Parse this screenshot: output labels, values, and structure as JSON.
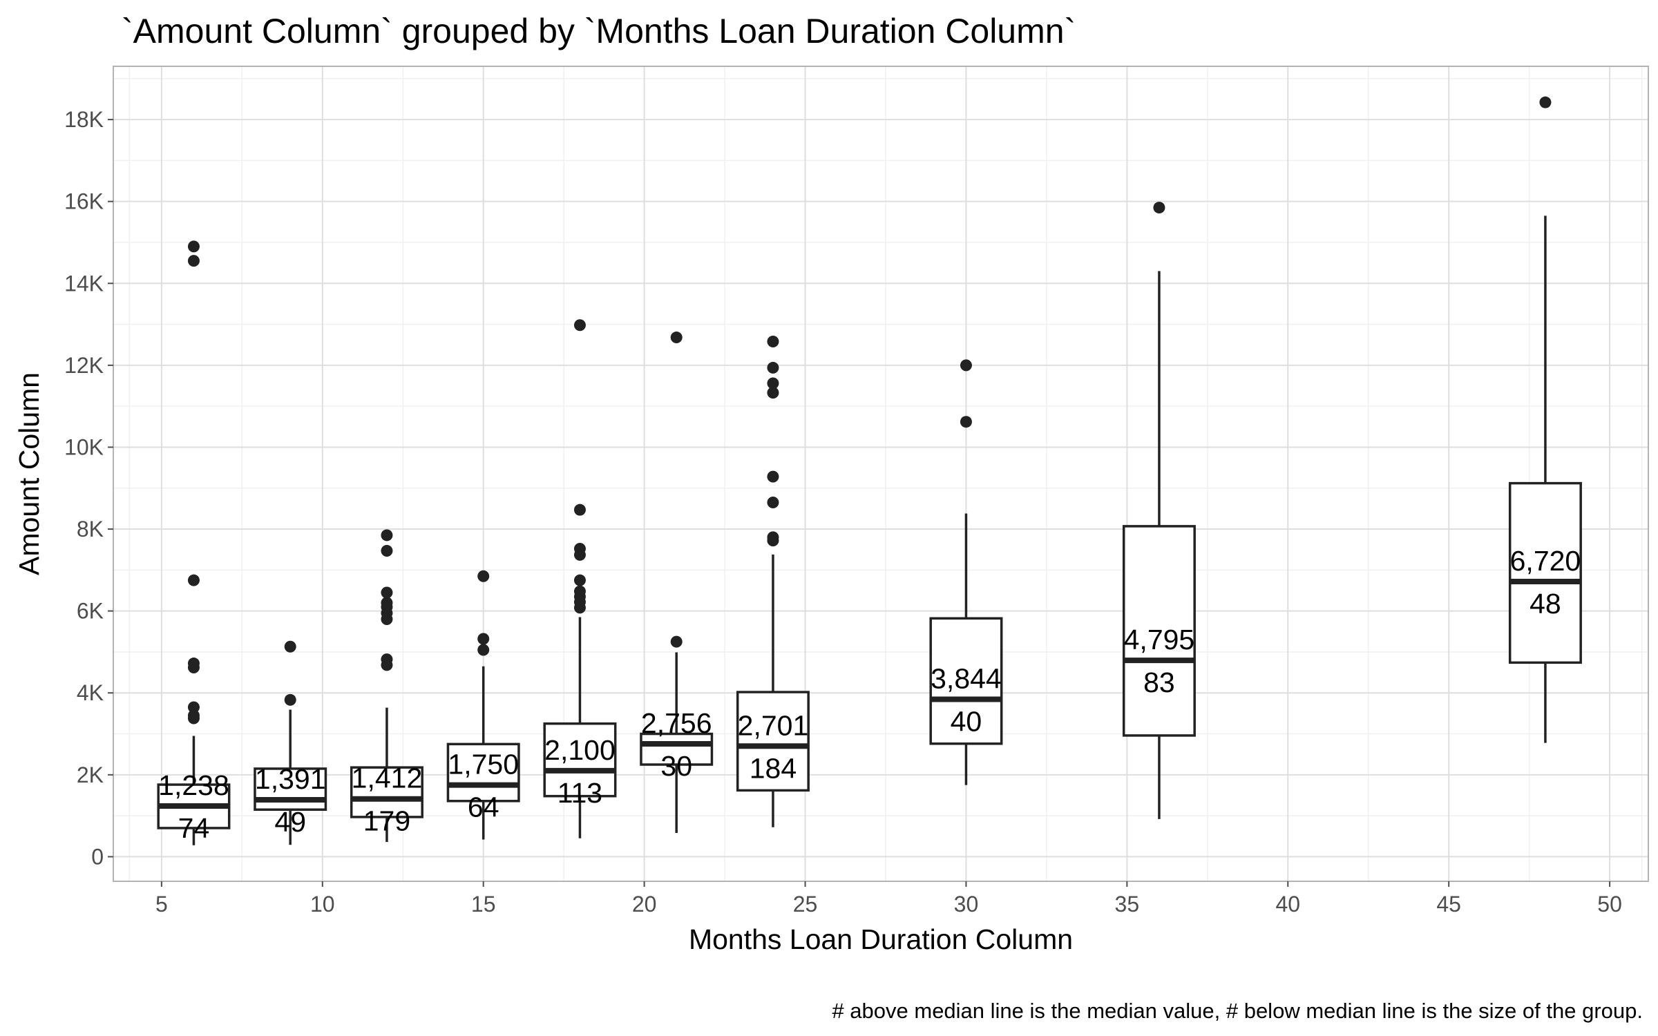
{
  "chart_data": {
    "type": "boxplot",
    "title": "`Amount Column` grouped by `Months Loan Duration Column`",
    "xlabel": "Months Loan Duration Column",
    "ylabel": "Amount Column",
    "caption": "# above median line is the median value, # below median line is the size of the group.",
    "xlim": [
      3.5,
      51.2
    ],
    "ylim": [
      -600,
      19300
    ],
    "x_ticks": [
      5,
      10,
      15,
      20,
      25,
      30,
      35,
      40,
      45,
      50
    ],
    "x_tick_labels": [
      "5",
      "10",
      "15",
      "20",
      "25",
      "30",
      "35",
      "40",
      "45",
      "50"
    ],
    "y_ticks": [
      0,
      2000,
      4000,
      6000,
      8000,
      10000,
      12000,
      14000,
      16000,
      18000
    ],
    "y_tick_labels": [
      "0",
      "2K",
      "4K",
      "6K",
      "8K",
      "10K",
      "12K",
      "14K",
      "16K",
      "18K"
    ],
    "grid": true,
    "box_width": 2.2,
    "groups": [
      {
        "x": 6,
        "whisker_low": 280,
        "q1": 700,
        "median": 1238,
        "q3": 1760,
        "whisker_high": 2950,
        "median_label": "1,238",
        "n_label": "74",
        "outliers": [
          3380,
          3450,
          3650,
          4620,
          4720,
          6750,
          14550,
          14900
        ]
      },
      {
        "x": 9,
        "whisker_low": 290,
        "q1": 1150,
        "median": 1391,
        "q3": 2150,
        "whisker_high": 3590,
        "median_label": "1,391",
        "n_label": "49",
        "outliers": [
          3830,
          5130
        ]
      },
      {
        "x": 12,
        "whisker_low": 360,
        "q1": 970,
        "median": 1412,
        "q3": 2180,
        "whisker_high": 3640,
        "median_label": "1,412",
        "n_label": "179",
        "outliers": [
          4680,
          4820,
          5800,
          5950,
          6100,
          6200,
          6450,
          7470,
          7850
        ]
      },
      {
        "x": 15,
        "whisker_low": 420,
        "q1": 1360,
        "median": 1750,
        "q3": 2750,
        "whisker_high": 4650,
        "median_label": "1,750",
        "n_label": "64",
        "outliers": [
          5050,
          5320,
          6850
        ]
      },
      {
        "x": 18,
        "whisker_low": 450,
        "q1": 1480,
        "median": 2100,
        "q3": 3250,
        "whisker_high": 5850,
        "median_label": "2,100",
        "n_label": "113",
        "outliers": [
          6080,
          6220,
          6350,
          6480,
          6750,
          7370,
          7520,
          8470,
          12980
        ]
      },
      {
        "x": 21,
        "whisker_low": 580,
        "q1": 2250,
        "median": 2756,
        "q3": 3000,
        "whisker_high": 4990,
        "median_label": "2,756",
        "n_label": "30",
        "outliers": [
          5250,
          12680
        ]
      },
      {
        "x": 24,
        "whisker_low": 720,
        "q1": 1620,
        "median": 2701,
        "q3": 4020,
        "whisker_high": 7380,
        "median_label": "2,701",
        "n_label": "184",
        "outliers": [
          7720,
          7800,
          8650,
          9280,
          11330,
          11560,
          11940,
          12580
        ]
      },
      {
        "x": 30,
        "whisker_low": 1750,
        "q1": 2760,
        "median": 3844,
        "q3": 5820,
        "whisker_high": 8380,
        "median_label": "3,844",
        "n_label": "40",
        "outliers": [
          10620,
          12000
        ]
      },
      {
        "x": 36,
        "whisker_low": 920,
        "q1": 2960,
        "median": 4795,
        "q3": 8070,
        "whisker_high": 14300,
        "median_label": "4,795",
        "n_label": "83",
        "outliers": [
          15850
        ]
      },
      {
        "x": 48,
        "whisker_low": 2780,
        "q1": 4740,
        "median": 6720,
        "q3": 9120,
        "whisker_high": 15650,
        "median_label": "6,720",
        "n_label": "48",
        "outliers": [
          18420
        ]
      }
    ]
  }
}
